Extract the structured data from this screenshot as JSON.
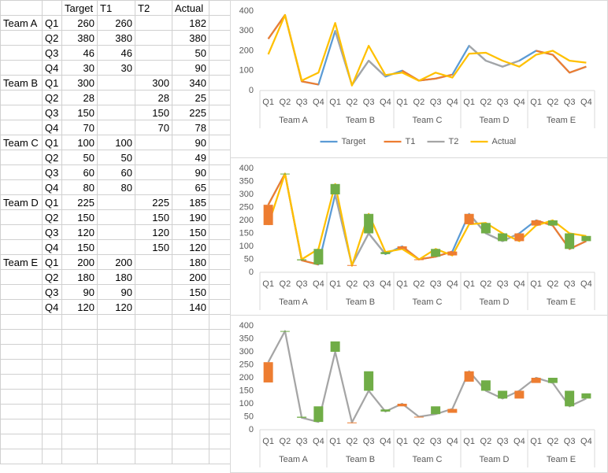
{
  "table": {
    "columns": [
      "Target",
      "T1",
      "T2",
      "Actual"
    ],
    "rows": [
      {
        "team": "Team A",
        "quarters": [
          {
            "quarter": "Q1",
            "cells": [
              260,
              260,
              null,
              182
            ]
          },
          {
            "quarter": "Q2",
            "cells": [
              380,
              380,
              null,
              380
            ]
          },
          {
            "quarter": "Q3",
            "cells": [
              46,
              46,
              null,
              50
            ]
          },
          {
            "quarter": "Q4",
            "cells": [
              30,
              30,
              null,
              90
            ]
          }
        ]
      },
      {
        "team": "Team B",
        "quarters": [
          {
            "quarter": "Q1",
            "cells": [
              300,
              null,
              300,
              340
            ]
          },
          {
            "quarter": "Q2",
            "cells": [
              28,
              null,
              28,
              25
            ]
          },
          {
            "quarter": "Q3",
            "cells": [
              150,
              null,
              150,
              225
            ]
          },
          {
            "quarter": "Q4",
            "cells": [
              70,
              null,
              70,
              78
            ]
          }
        ]
      },
      {
        "team": "Team C",
        "quarters": [
          {
            "quarter": "Q1",
            "cells": [
              100,
              100,
              null,
              90
            ]
          },
          {
            "quarter": "Q2",
            "cells": [
              50,
              50,
              null,
              49
            ]
          },
          {
            "quarter": "Q3",
            "cells": [
              60,
              60,
              null,
              90
            ]
          },
          {
            "quarter": "Q4",
            "cells": [
              80,
              80,
              null,
              65
            ]
          }
        ]
      },
      {
        "team": "Team D",
        "quarters": [
          {
            "quarter": "Q1",
            "cells": [
              225,
              null,
              225,
              185
            ]
          },
          {
            "quarter": "Q2",
            "cells": [
              150,
              null,
              150,
              190
            ]
          },
          {
            "quarter": "Q3",
            "cells": [
              120,
              null,
              120,
              150
            ]
          },
          {
            "quarter": "Q4",
            "cells": [
              150,
              null,
              150,
              120
            ]
          }
        ]
      },
      {
        "team": "Team E",
        "quarters": [
          {
            "quarter": "Q1",
            "cells": [
              200,
              200,
              null,
              180
            ]
          },
          {
            "quarter": "Q2",
            "cells": [
              180,
              180,
              null,
              200
            ]
          },
          {
            "quarter": "Q3",
            "cells": [
              90,
              90,
              null,
              150
            ]
          },
          {
            "quarter": "Q4",
            "cells": [
              120,
              120,
              null,
              140
            ]
          }
        ]
      }
    ]
  },
  "chart_data": [
    {
      "type": "line",
      "categories": [
        "Q1",
        "Q2",
        "Q3",
        "Q4",
        "Q1",
        "Q2",
        "Q3",
        "Q4",
        "Q1",
        "Q2",
        "Q3",
        "Q4",
        "Q1",
        "Q2",
        "Q3",
        "Q4",
        "Q1",
        "Q2",
        "Q3",
        "Q4"
      ],
      "groups": [
        "Team A",
        "Team B",
        "Team C",
        "Team D",
        "Team E"
      ],
      "ylim": [
        0,
        400
      ],
      "yticks": [
        0,
        100,
        200,
        300,
        400
      ],
      "legend": "bottom",
      "series": [
        {
          "name": "Target",
          "color": "#5b9bd5",
          "values": [
            260,
            380,
            46,
            30,
            300,
            28,
            150,
            70,
            100,
            50,
            60,
            80,
            225,
            150,
            120,
            150,
            200,
            180,
            90,
            120
          ]
        },
        {
          "name": "T1",
          "color": "#ed7d31",
          "values": [
            260,
            380,
            46,
            30,
            null,
            null,
            null,
            null,
            100,
            50,
            60,
            80,
            null,
            null,
            null,
            null,
            200,
            180,
            90,
            120
          ]
        },
        {
          "name": "T2",
          "color": "#a5a5a5",
          "values": [
            null,
            null,
            null,
            null,
            300,
            28,
            150,
            70,
            null,
            null,
            null,
            null,
            225,
            150,
            120,
            150,
            null,
            null,
            null,
            null
          ]
        },
        {
          "name": "Actual",
          "color": "#ffc000",
          "values": [
            182,
            380,
            50,
            90,
            340,
            25,
            225,
            78,
            90,
            49,
            90,
            65,
            185,
            190,
            150,
            120,
            180,
            200,
            150,
            140
          ]
        }
      ]
    },
    {
      "type": "line",
      "categories": [
        "Q1",
        "Q2",
        "Q3",
        "Q4",
        "Q1",
        "Q2",
        "Q3",
        "Q4",
        "Q1",
        "Q2",
        "Q3",
        "Q4",
        "Q1",
        "Q2",
        "Q3",
        "Q4",
        "Q1",
        "Q2",
        "Q3",
        "Q4"
      ],
      "groups": [
        "Team A",
        "Team B",
        "Team C",
        "Team D",
        "Team E"
      ],
      "ylim": [
        0,
        400
      ],
      "yticks": [
        0,
        50,
        100,
        150,
        200,
        250,
        300,
        350,
        400
      ],
      "up_down_bars": {
        "up_color": "#70ad47",
        "down_color": "#ed7d31"
      },
      "series": [
        {
          "name": "Target",
          "color": "#5b9bd5",
          "values": [
            260,
            380,
            46,
            30,
            300,
            28,
            150,
            70,
            100,
            50,
            60,
            80,
            225,
            150,
            120,
            150,
            200,
            180,
            90,
            120
          ]
        },
        {
          "name": "T1",
          "color": "#ed7d31",
          "values": [
            260,
            380,
            46,
            30,
            null,
            null,
            null,
            null,
            100,
            50,
            60,
            80,
            null,
            null,
            null,
            null,
            200,
            180,
            90,
            120
          ]
        },
        {
          "name": "T2",
          "color": "#a5a5a5",
          "values": [
            null,
            null,
            null,
            null,
            300,
            28,
            150,
            70,
            null,
            null,
            null,
            null,
            225,
            150,
            120,
            150,
            null,
            null,
            null,
            null
          ]
        },
        {
          "name": "Actual",
          "color": "#ffc000",
          "values": [
            182,
            380,
            50,
            90,
            340,
            25,
            225,
            78,
            90,
            49,
            90,
            65,
            185,
            190,
            150,
            120,
            180,
            200,
            150,
            140
          ]
        }
      ]
    },
    {
      "type": "line",
      "categories": [
        "Q1",
        "Q2",
        "Q3",
        "Q4",
        "Q1",
        "Q2",
        "Q3",
        "Q4",
        "Q1",
        "Q2",
        "Q3",
        "Q4",
        "Q1",
        "Q2",
        "Q3",
        "Q4",
        "Q1",
        "Q2",
        "Q3",
        "Q4"
      ],
      "groups": [
        "Team A",
        "Team B",
        "Team C",
        "Team D",
        "Team E"
      ],
      "ylim": [
        0,
        400
      ],
      "yticks": [
        0,
        50,
        100,
        150,
        200,
        250,
        300,
        350,
        400
      ],
      "up_down_bars": {
        "up_color": "#70ad47",
        "down_color": "#ed7d31"
      },
      "series": [
        {
          "name": "Target",
          "color": "#a5a5a5",
          "values": [
            260,
            380,
            46,
            30,
            300,
            28,
            150,
            70,
            100,
            50,
            60,
            80,
            225,
            150,
            120,
            150,
            200,
            180,
            90,
            120
          ]
        },
        {
          "name": "Actual",
          "line": false,
          "values": [
            182,
            380,
            50,
            90,
            340,
            25,
            225,
            78,
            90,
            49,
            90,
            65,
            185,
            190,
            150,
            120,
            180,
            200,
            150,
            140
          ]
        }
      ]
    }
  ]
}
